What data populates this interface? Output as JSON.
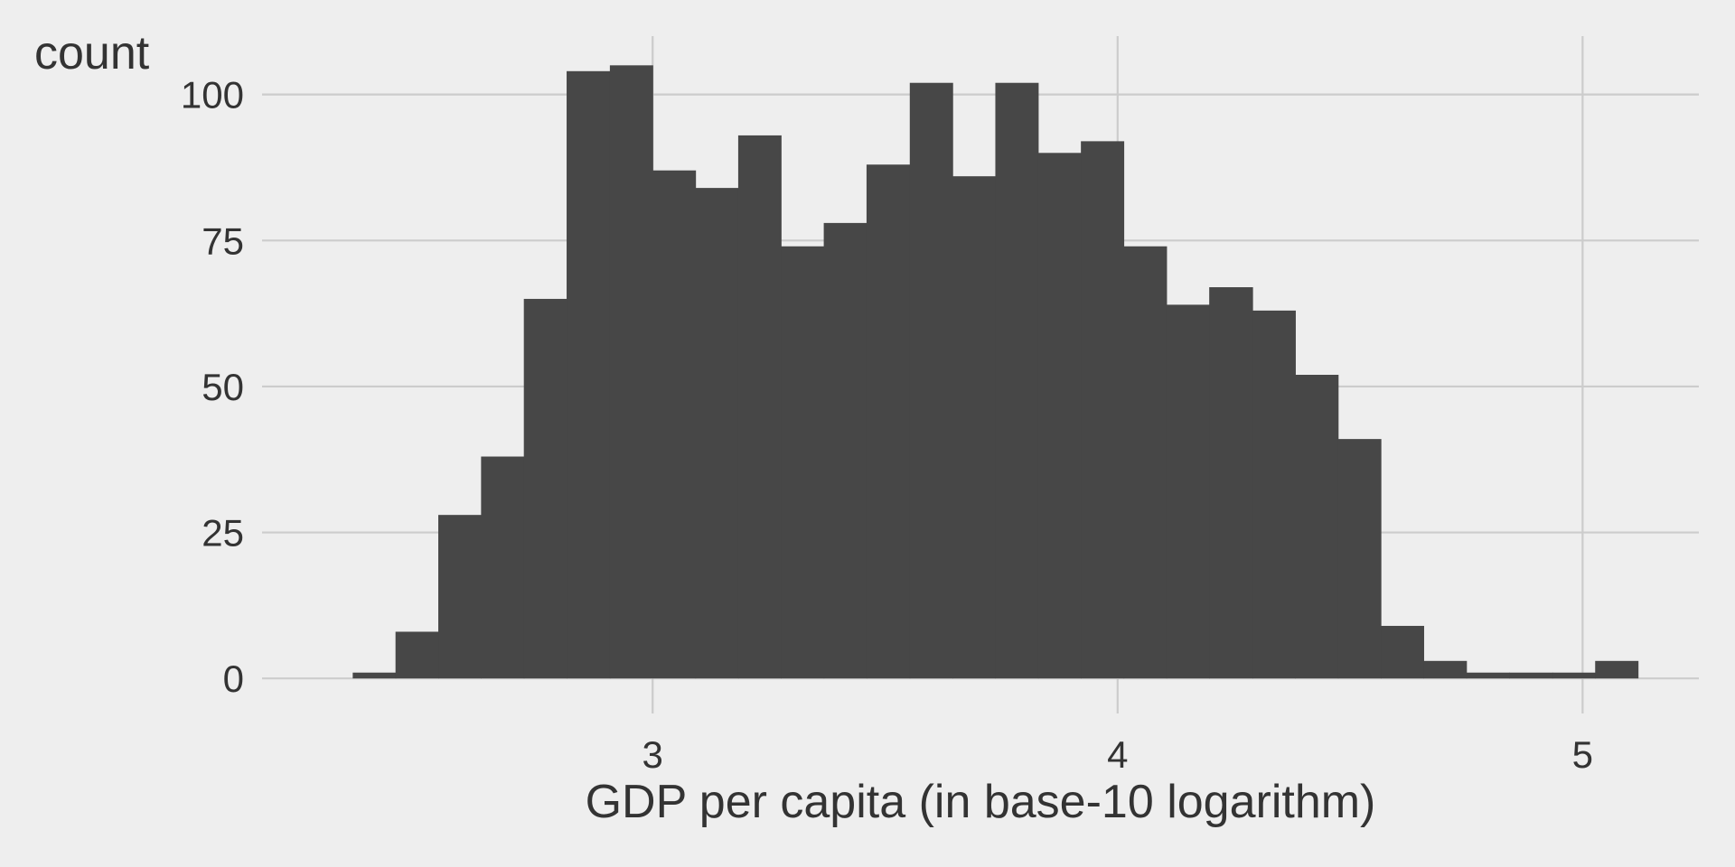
{
  "chart_data": {
    "type": "histogram",
    "title": "",
    "xlabel": "GDP per capita (in base-10 logarithm)",
    "ylabel": "count",
    "xlim": [
      2.16,
      5.25
    ],
    "ylim": [
      -6,
      110
    ],
    "x_ticks": [
      3,
      4,
      5
    ],
    "y_ticks": [
      0,
      25,
      50,
      75,
      100
    ],
    "grid": true,
    "legend": "none",
    "bar_color": "#474747",
    "background_color": "#eeeeee",
    "grid_color": "#cccccc",
    "bins": [
      {
        "x0": 2.355,
        "x1": 2.447,
        "count": 1
      },
      {
        "x0": 2.447,
        "x1": 2.539,
        "count": 8
      },
      {
        "x0": 2.539,
        "x1": 2.631,
        "count": 28
      },
      {
        "x0": 2.631,
        "x1": 2.723,
        "count": 38
      },
      {
        "x0": 2.723,
        "x1": 2.815,
        "count": 65
      },
      {
        "x0": 2.815,
        "x1": 2.908,
        "count": 104
      },
      {
        "x0": 2.908,
        "x1": 3.0,
        "count": 105
      },
      {
        "x0": 3.0,
        "x1": 3.092,
        "count": 87
      },
      {
        "x0": 3.092,
        "x1": 3.184,
        "count": 84
      },
      {
        "x0": 3.184,
        "x1": 3.276,
        "count": 93
      },
      {
        "x0": 3.276,
        "x1": 3.368,
        "count": 74
      },
      {
        "x0": 3.368,
        "x1": 3.46,
        "count": 78
      },
      {
        "x0": 3.46,
        "x1": 3.553,
        "count": 88
      },
      {
        "x0": 3.553,
        "x1": 3.645,
        "count": 102
      },
      {
        "x0": 3.645,
        "x1": 3.737,
        "count": 86
      },
      {
        "x0": 3.737,
        "x1": 3.829,
        "count": 102
      },
      {
        "x0": 3.829,
        "x1": 3.921,
        "count": 90
      },
      {
        "x0": 3.921,
        "x1": 4.013,
        "count": 92
      },
      {
        "x0": 4.013,
        "x1": 4.105,
        "count": 74
      },
      {
        "x0": 4.105,
        "x1": 4.197,
        "count": 64
      },
      {
        "x0": 4.197,
        "x1": 4.29,
        "count": 67
      },
      {
        "x0": 4.29,
        "x1": 4.382,
        "count": 63
      },
      {
        "x0": 4.382,
        "x1": 4.474,
        "count": 52
      },
      {
        "x0": 4.474,
        "x1": 4.566,
        "count": 41
      },
      {
        "x0": 4.566,
        "x1": 4.658,
        "count": 9
      },
      {
        "x0": 4.658,
        "x1": 4.75,
        "count": 3
      },
      {
        "x0": 4.75,
        "x1": 4.842,
        "count": 1
      },
      {
        "x0": 4.842,
        "x1": 4.935,
        "count": 1
      },
      {
        "x0": 4.935,
        "x1": 5.027,
        "count": 1
      },
      {
        "x0": 5.027,
        "x1": 5.119,
        "count": 3
      }
    ]
  }
}
